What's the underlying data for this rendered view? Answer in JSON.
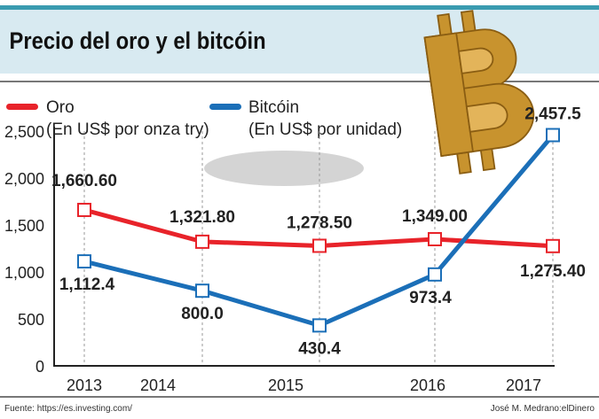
{
  "header": {
    "title": "Precio del oro y el bitcóin"
  },
  "legend": [
    {
      "name": "Oro",
      "unit": "(En US$ por onza try)",
      "color": "#e8232a"
    },
    {
      "name": "Bitcóin",
      "unit": "(En US$ por unidad)",
      "color": "#1b6fb8"
    }
  ],
  "footer": {
    "source": "Fuente: https://es.investing.com/",
    "credit": "José M. Medrano:elDinero"
  },
  "decoration": {
    "icon": "bitcoin-logo-icon",
    "logo_text": "₿"
  },
  "chart_data": {
    "type": "line",
    "title": "Precio del oro y el bitcóin",
    "x": [
      "2013",
      "2014",
      "2015",
      "2016",
      "2017"
    ],
    "ylim": [
      0,
      2500
    ],
    "yticks": [
      "0",
      "500",
      "1,000",
      "1,500",
      "2,000",
      "2,500"
    ],
    "ytick_values": [
      0,
      500,
      1000,
      1500,
      2000,
      2500
    ],
    "grid": "vertical dashed",
    "legend_position": "top-left",
    "series": [
      {
        "name": "Oro",
        "color": "#e8232a",
        "values": [
          1660.6,
          1321.8,
          1278.5,
          1349.0,
          1275.4
        ],
        "labels": [
          "1,660.60",
          "1,321.80",
          "1,278.50",
          "1,349.00",
          "1,275.40"
        ]
      },
      {
        "name": "Bitcóin",
        "color": "#1b6fb8",
        "values": [
          1112.4,
          800.0,
          430.4,
          973.4,
          2457.5
        ],
        "labels": [
          "1,112.4",
          "800.0",
          "430.4",
          "973.4",
          "2,457.5"
        ]
      }
    ]
  }
}
